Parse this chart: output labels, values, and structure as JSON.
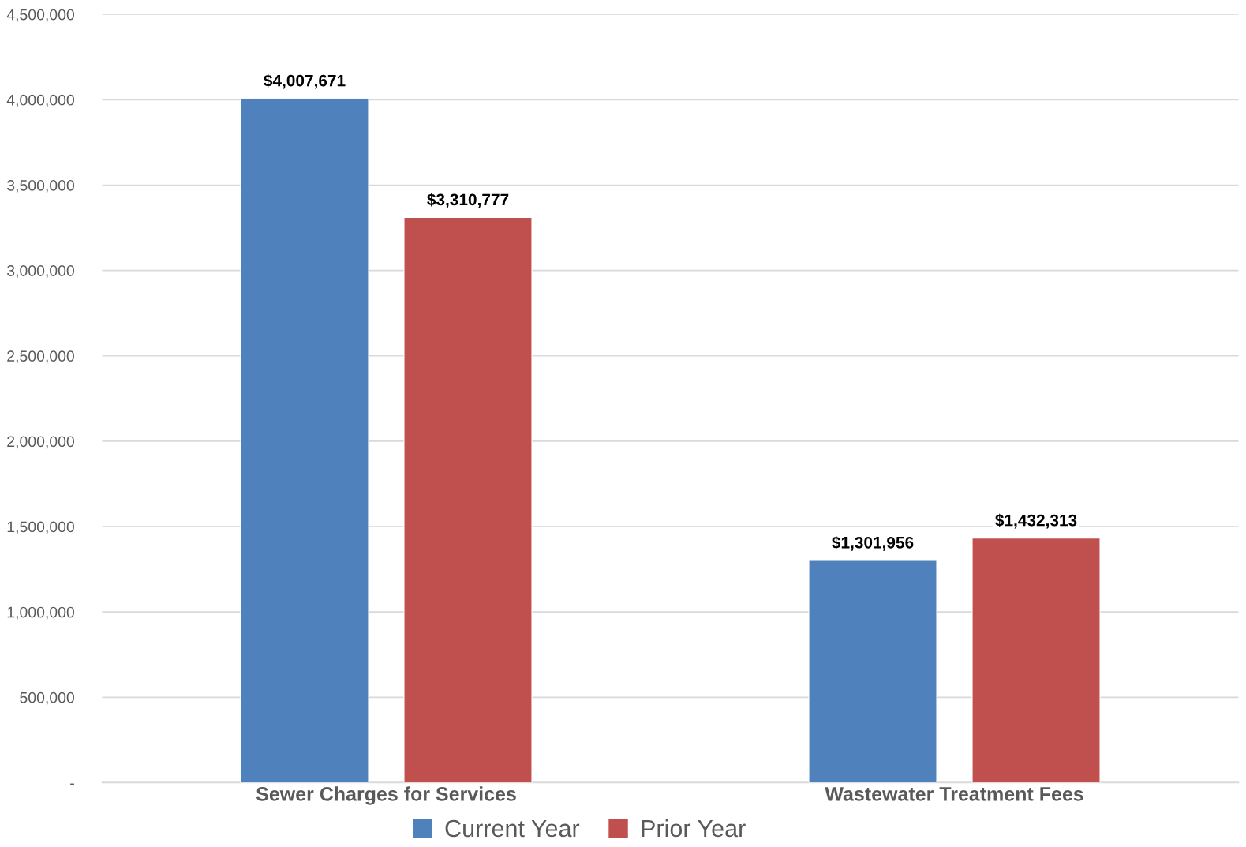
{
  "chart_data": {
    "type": "bar",
    "categories": [
      "Sewer Charges for Services",
      "Wastewater Treatment Fees"
    ],
    "series": [
      {
        "name": "Current Year",
        "color": "#4f81bd",
        "values": [
          4007671,
          1301956
        ],
        "value_labels": [
          "$4,007,671",
          "$1,301,956"
        ]
      },
      {
        "name": "Prior Year",
        "color": "#c0504d",
        "values": [
          3310777,
          1432313
        ],
        "value_labels": [
          "$3,310,777",
          "$1,432,313"
        ]
      }
    ],
    "ylim": [
      0,
      4500000
    ],
    "yticks": [
      {
        "value": 0,
        "label": "-"
      },
      {
        "value": 500000,
        "label": "500,000"
      },
      {
        "value": 1000000,
        "label": "1,000,000"
      },
      {
        "value": 1500000,
        "label": "1,500,000"
      },
      {
        "value": 2000000,
        "label": "2,000,000"
      },
      {
        "value": 2500000,
        "label": "2,500,000"
      },
      {
        "value": 3000000,
        "label": "3,000,000"
      },
      {
        "value": 3500000,
        "label": "3,500,000"
      },
      {
        "value": 4000000,
        "label": "4,000,000"
      },
      {
        "value": 4500000,
        "label": "4,500,000"
      }
    ],
    "grid": "y",
    "legend": "bottom"
  }
}
